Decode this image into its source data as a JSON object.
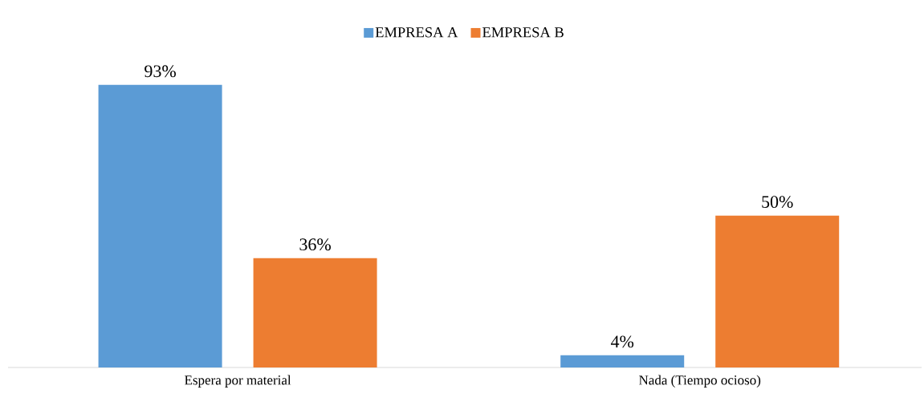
{
  "chart_data": {
    "type": "bar",
    "categories": [
      "Espera por material",
      "Nada (Tiempo ocioso)"
    ],
    "series": [
      {
        "name": "EMPRESA A",
        "color": "#5b9bd5",
        "values": [
          93,
          4
        ],
        "value_labels": [
          "93%",
          "4%"
        ]
      },
      {
        "name": "EMPRESA B",
        "color": "#ed7d31",
        "values": [
          36,
          50
        ],
        "value_labels": [
          "36%",
          "50%"
        ]
      }
    ],
    "legend": "top"
  }
}
